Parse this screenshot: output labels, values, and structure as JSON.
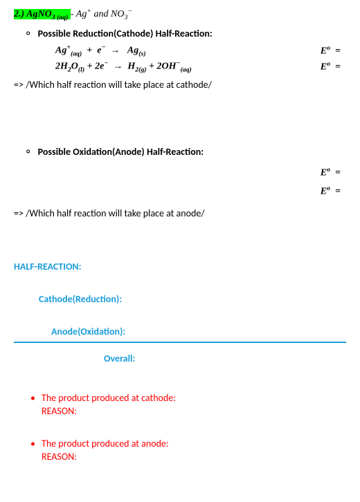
{
  "header": {
    "number": "2.)",
    "formula_html": "AgNO<span class='sub'>3 (aq)</span>",
    "tail_html": " - Ag<span class='sup'>+</span> and NO<span class='sub'>3</span><span class='sup'>−</span>"
  },
  "cathode": {
    "heading": "Possible Reduction(Cathode) Half-Reaction:",
    "eq1_left": "Ag<span class='sup'>+</span><span class='sub'>(aq)</span>&nbsp;&nbsp;+&nbsp;&nbsp;e<span class='sup'>−</span>&nbsp;&nbsp;→&nbsp;&nbsp;&nbsp;Ag<span class='sub'>(s)</span>",
    "eq1_right": "E<span class='sup'>o</span>&nbsp;&nbsp;=",
    "eq2_left": "2H<span class='sub'>2</span>O<span class='sub'>(l)</span>&nbsp;+ 2e<span class='sup'>−</span>&nbsp;&nbsp;→&nbsp;&nbsp;H<span class='sub'>2(g)</span>&nbsp;+&nbsp;2OH<span class='sup'>−</span><span class='sub'>(aq)</span>",
    "eq2_right": "E<span class='sup'>o</span>&nbsp;&nbsp;=",
    "note": "=> /Which half reaction will take place at cathode/"
  },
  "anode": {
    "heading": "Possible Oxidation(Anode) Half-Reaction:",
    "eq1_right": "E<span class='sup'>o</span>&nbsp;&nbsp;=",
    "eq2_right": "E<span class='sup'>o</span>&nbsp;&nbsp;=",
    "note": "=> /Which half reaction will take place at anode/"
  },
  "half_reaction": {
    "title": "HALF-REACTION:",
    "cathode": "Cathode(Reduction):",
    "anode": "Anode(Oxidation):",
    "overall": "Overall:"
  },
  "products": {
    "cathode_line": "The product produced at cathode:",
    "anode_line": "The product produced at anode:",
    "reason": "REASON:"
  }
}
